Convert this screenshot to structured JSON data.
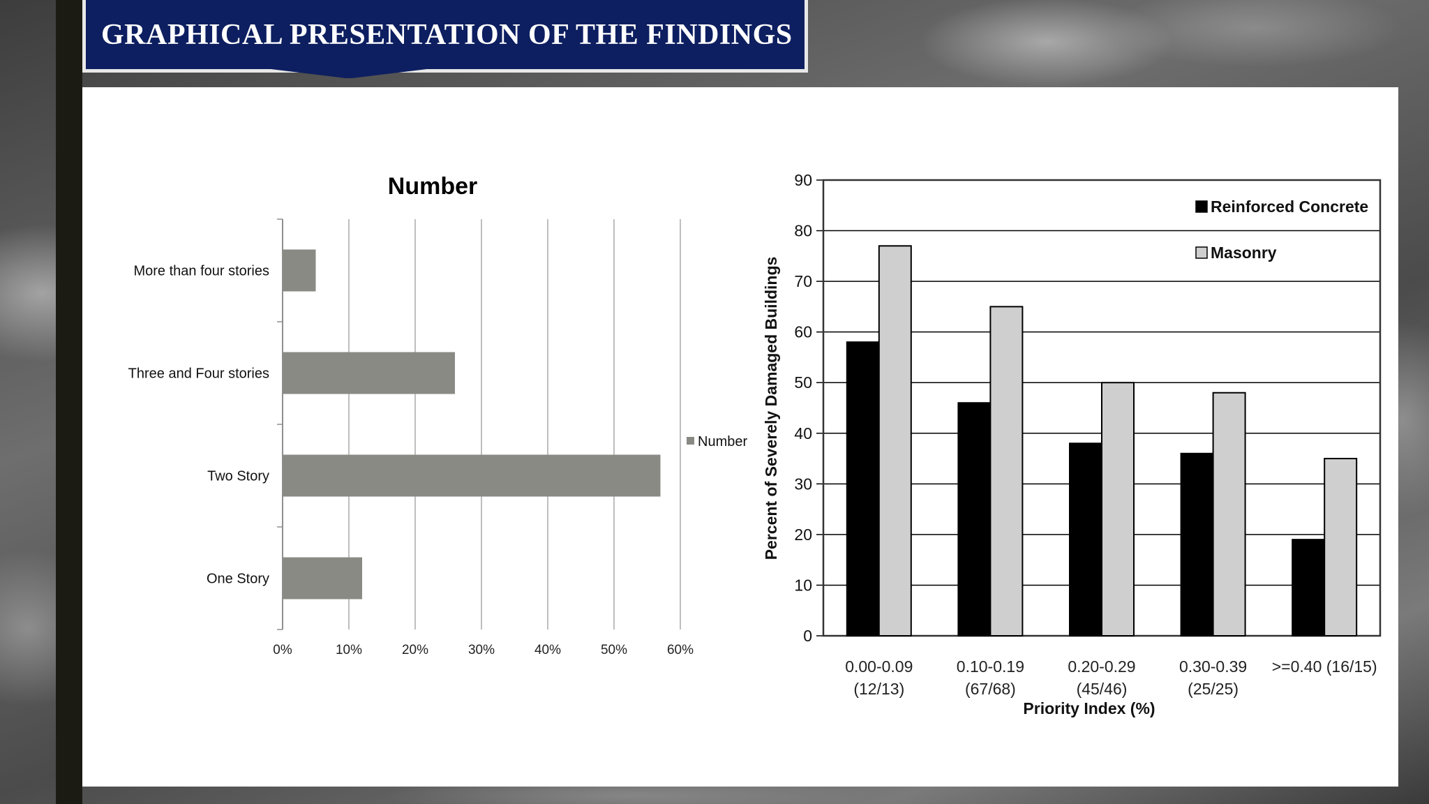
{
  "slide": {
    "title": "GRAPHICAL PRESENTATION OF THE FINDINGS"
  },
  "colors": {
    "banner": "#0d1f60",
    "bar_gray": "#8a8a85",
    "reinforced": "#000000",
    "masonry": "#cfcfcf"
  },
  "chart_data": [
    {
      "type": "bar",
      "orientation": "horizontal",
      "title": "Number",
      "categories": [
        "More than four stories",
        "Three and Four stories",
        "Two Story",
        "One Story"
      ],
      "series": [
        {
          "name": "Number",
          "values": [
            5,
            26,
            57,
            12
          ]
        }
      ],
      "xlim": [
        0,
        60
      ],
      "xticks": [
        "0%",
        "10%",
        "20%",
        "30%",
        "40%",
        "50%",
        "60%"
      ],
      "grid": true,
      "legend": "right"
    },
    {
      "type": "bar",
      "title": "",
      "xlabel": "Priority Index (%)",
      "ylabel": "Percent of Severely Damaged Buildings",
      "categories": [
        [
          "0.00-0.09",
          "(12/13)"
        ],
        [
          "0.10-0.19",
          "(67/68)"
        ],
        [
          "0.20-0.29",
          "(45/46)"
        ],
        [
          "0.30-0.39",
          "(25/25)"
        ],
        [
          ">=0.40 (16/15)"
        ]
      ],
      "series": [
        {
          "name": "Reinforced Concrete",
          "values": [
            58,
            46,
            38,
            36,
            19
          ]
        },
        {
          "name": "Masonry",
          "values": [
            77,
            65,
            50,
            48,
            35
          ]
        }
      ],
      "ylim": [
        0,
        90
      ],
      "yticks": [
        "0",
        "10",
        "20",
        "30",
        "40",
        "50",
        "60",
        "70",
        "80",
        "90"
      ],
      "grid": true,
      "legend": "top-right"
    }
  ]
}
